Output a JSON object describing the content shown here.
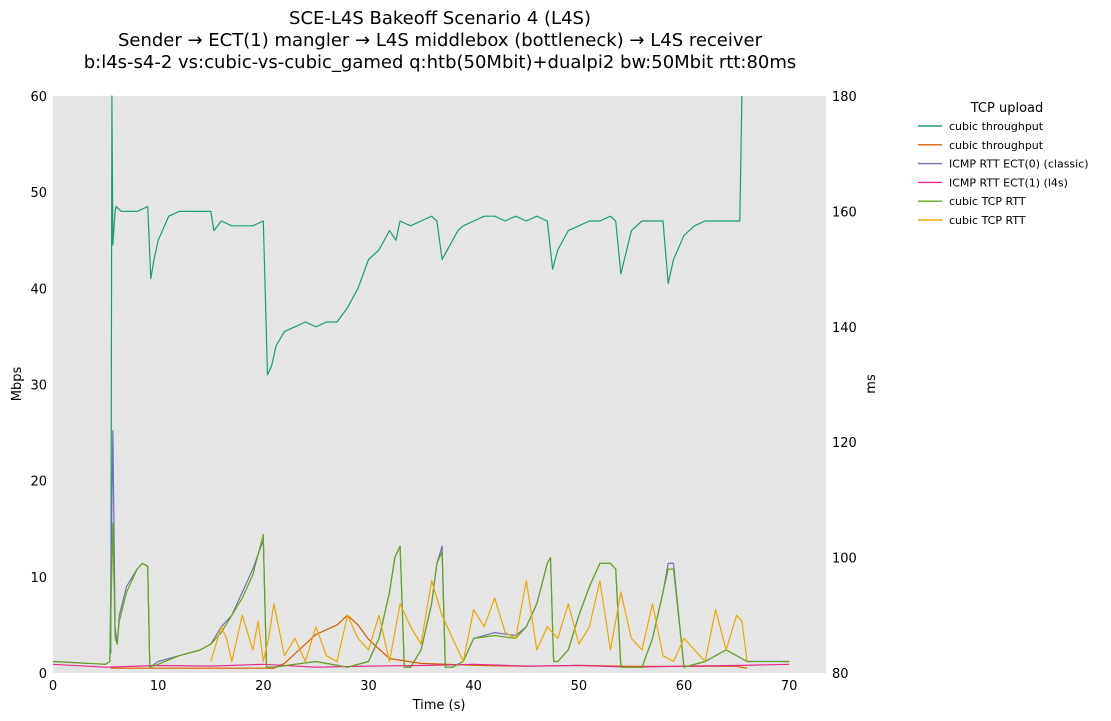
{
  "chart_data": {
    "type": "line",
    "title": [
      "SCE-L4S Bakeoff Scenario 4 (L4S)",
      "Sender → ECT(1) mangler → L4S middlebox (bottleneck) → L4S receiver",
      "b:l4s-s4-2 vs:cubic-vs-cubic_gamed q:htb(50Mbit)+dualpi2 bw:50Mbit rtt:80ms"
    ],
    "xlabel": "Time (s)",
    "ylabel_left": "Mbps",
    "ylabel_right": "ms",
    "xlim": [
      0,
      73.5
    ],
    "ylim_left": [
      0,
      60
    ],
    "ylim_right": [
      80,
      180
    ],
    "x_ticks": [
      0,
      10,
      20,
      30,
      40,
      50,
      60,
      70
    ],
    "y_left_ticks": [
      0,
      10,
      20,
      30,
      40,
      50,
      60
    ],
    "y_right_ticks": [
      80,
      100,
      120,
      140,
      160,
      180
    ],
    "grid": false,
    "background": "#e5e5e5",
    "legend": {
      "title": "TCP upload",
      "placement": "outside-right"
    },
    "series": [
      {
        "name": "cubic throughput",
        "color": "#1b9e77",
        "axis": "left",
        "x": [
          5.5,
          5.6,
          5.7,
          5.9,
          6.0,
          6.5,
          7.0,
          8.0,
          9.0,
          9.3,
          9.6,
          10.0,
          11.0,
          12.0,
          13.0,
          14.0,
          15.0,
          15.3,
          16.0,
          17.0,
          18.0,
          19.0,
          20.0,
          20.4,
          20.8,
          21.2,
          22.0,
          23.0,
          24.0,
          25.0,
          26.0,
          27.0,
          28.0,
          29.0,
          30.0,
          31.0,
          32.0,
          32.6,
          33.0,
          34.0,
          35.0,
          36.0,
          36.5,
          37.0,
          38.0,
          38.5,
          39.0,
          40.0,
          41.0,
          42.0,
          43.0,
          44.0,
          45.0,
          46.0,
          47.0,
          47.5,
          48.0,
          49.0,
          50.0,
          51.0,
          52.0,
          53.0,
          53.5,
          54.0,
          55.0,
          56.0,
          57.0,
          58.0,
          58.5,
          59.0,
          60.0,
          61.0,
          62.0,
          63.0,
          64.0,
          65.0,
          65.3,
          65.5
        ],
        "values": [
          2,
          60,
          44.5,
          48,
          48.5,
          48,
          48,
          48,
          48.5,
          41,
          43,
          45,
          47.5,
          48,
          48,
          48,
          48,
          46,
          47,
          46.5,
          46.5,
          46.5,
          47,
          31,
          32,
          34,
          35.5,
          36,
          36.5,
          36,
          36.5,
          36.5,
          38,
          40,
          43,
          44,
          46,
          45,
          47,
          46.5,
          47,
          47.5,
          47,
          43,
          45,
          46,
          46.5,
          47,
          47.5,
          47.5,
          47,
          47.5,
          47,
          47.5,
          47,
          42,
          44,
          46,
          46.5,
          47,
          47,
          47.5,
          47,
          41.5,
          46,
          47,
          47,
          47,
          40.5,
          43,
          45.5,
          46.5,
          47,
          47,
          47,
          47,
          47,
          60
        ]
      },
      {
        "name": "cubic throughput",
        "color": "#d95f02",
        "axis": "left",
        "x": [
          5.5,
          10.0,
          15.0,
          18.0,
          19.0,
          20.0,
          21.0,
          22.0,
          23.0,
          24.0,
          25.0,
          26.0,
          27.0,
          28.0,
          29.0,
          30.0,
          31.0,
          32.0,
          35.0,
          40.0,
          45.0,
          50.0,
          55.0,
          60.0,
          65.0,
          66.0
        ],
        "values": [
          0.5,
          0.5,
          0.5,
          0.5,
          0.5,
          0.5,
          0.5,
          1.0,
          2.0,
          3.0,
          4.0,
          4.5,
          5.0,
          6.0,
          5.0,
          3.5,
          2.5,
          1.5,
          1.0,
          0.8,
          0.7,
          0.8,
          0.7,
          0.7,
          0.7,
          0.5
        ]
      },
      {
        "name": "ICMP RTT ECT(0) (classic)",
        "color": "#7570b3",
        "axis": "right",
        "x": [
          0,
          5.0,
          5.4,
          5.7,
          5.9,
          6.1,
          6.3,
          7.0,
          8.0,
          8.5,
          9.0,
          9.2,
          10.0,
          12.0,
          14.0,
          15.0,
          16.0,
          17.0,
          18.0,
          19.0,
          20.0,
          20.3,
          21.0,
          23.0,
          25.0,
          28.0,
          30.0,
          31.0,
          32.0,
          32.5,
          33.0,
          33.4,
          34.0,
          35.0,
          36.0,
          36.5,
          37.0,
          37.3,
          38.0,
          39.0,
          40.0,
          42.0,
          44.0,
          45.0,
          46.0,
          47.0,
          47.3,
          47.6,
          48.0,
          49.0,
          50.0,
          51.0,
          52.0,
          53.0,
          53.5,
          54.0,
          56.0,
          57.0,
          58.0,
          58.5,
          59.0,
          60.0,
          62.0,
          64.0,
          66.0,
          70.0
        ],
        "values": [
          82,
          81.5,
          82,
          122,
          88,
          85,
          90,
          95,
          98,
          99,
          98.5,
          81,
          82,
          83,
          84,
          85,
          88,
          90,
          94,
          98,
          103,
          81,
          81,
          81.5,
          82,
          81,
          82,
          86,
          94,
          100,
          102,
          81,
          81,
          84,
          92,
          99,
          102,
          81,
          81,
          82,
          86,
          87,
          86.5,
          88,
          92,
          99,
          100,
          82,
          82,
          84,
          90,
          95,
          99,
          99,
          98,
          81,
          81,
          86,
          94,
          99,
          99,
          81,
          82,
          84,
          82,
          82
        ]
      },
      {
        "name": "ICMP RTT ECT(1) (l4s)",
        "color": "#e7298a",
        "axis": "right",
        "x": [
          0,
          5,
          10,
          15,
          20,
          25,
          30,
          35,
          40,
          45,
          50,
          55,
          60,
          65,
          70
        ],
        "values": [
          81.5,
          81,
          81.3,
          81.2,
          81.5,
          81,
          81.2,
          81.3,
          81.5,
          81.2,
          81.3,
          81,
          81.2,
          81.3,
          81.5
        ]
      },
      {
        "name": "cubic TCP RTT",
        "color": "#66a61e",
        "axis": "right",
        "x": [
          0,
          5.0,
          5.4,
          5.7,
          5.9,
          6.1,
          6.3,
          7.0,
          8.0,
          8.5,
          9.0,
          9.2,
          10.0,
          12.0,
          14.0,
          15.0,
          16.0,
          17.0,
          18.0,
          19.0,
          20.0,
          20.3,
          21.0,
          23.0,
          25.0,
          28.0,
          30.0,
          31.0,
          32.0,
          32.5,
          33.0,
          33.4,
          34.0,
          35.0,
          36.0,
          36.5,
          37.0,
          37.3,
          38.0,
          39.0,
          40.0,
          42.0,
          44.0,
          45.0,
          46.0,
          47.0,
          47.3,
          47.6,
          48.0,
          49.0,
          50.0,
          51.0,
          52.0,
          53.0,
          53.5,
          54.0,
          56.0,
          57.0,
          58.0,
          58.5,
          59.0,
          60.0,
          62.0,
          64.0,
          66.0,
          70.0
        ],
        "values": [
          82,
          81.5,
          82,
          106,
          86,
          85,
          89,
          94,
          98,
          99,
          98.5,
          81,
          81.5,
          83,
          84,
          85,
          87,
          90,
          93,
          97,
          104,
          81,
          81,
          81.5,
          82,
          81,
          82,
          86,
          94,
          100,
          102,
          81,
          81,
          84,
          92,
          99,
          101,
          81,
          81,
          82,
          86,
          86.5,
          86,
          88,
          92,
          99,
          100,
          82,
          82,
          84,
          90,
          95,
          99,
          99,
          98,
          81,
          81,
          86,
          94,
          98,
          98,
          81,
          82,
          84,
          82,
          82
        ]
      },
      {
        "name": "cubic TCP RTT",
        "color": "#e6ab02",
        "axis": "right",
        "x": [
          15.0,
          16.0,
          16.5,
          17.0,
          18.0,
          19.0,
          19.5,
          20.0,
          20.5,
          21.0,
          22.0,
          23.0,
          24.0,
          25.0,
          26.0,
          27.0,
          28.0,
          29.0,
          30.0,
          31.0,
          32.0,
          33.0,
          34.0,
          35.0,
          36.0,
          37.0,
          38.0,
          39.0,
          40.0,
          41.0,
          42.0,
          43.0,
          44.0,
          45.0,
          46.0,
          47.0,
          48.0,
          49.0,
          50.0,
          51.0,
          52.0,
          53.0,
          54.0,
          55.0,
          56.0,
          57.0,
          58.0,
          59.0,
          60.0,
          61.0,
          62.0,
          63.0,
          64.0,
          65.0,
          65.5,
          66.0
        ],
        "values": [
          82,
          88,
          86,
          82,
          90,
          84,
          89,
          82,
          86,
          92,
          83,
          86,
          82,
          88,
          83,
          82,
          90,
          86,
          84,
          90,
          82,
          92,
          88,
          85,
          96,
          90,
          86,
          82,
          91,
          88,
          93,
          87,
          86,
          96,
          84,
          88,
          86,
          92,
          85,
          88,
          96,
          84,
          94,
          86,
          84,
          92,
          83,
          82,
          86,
          84,
          82,
          91,
          84,
          90,
          89,
          82
        ]
      }
    ]
  }
}
